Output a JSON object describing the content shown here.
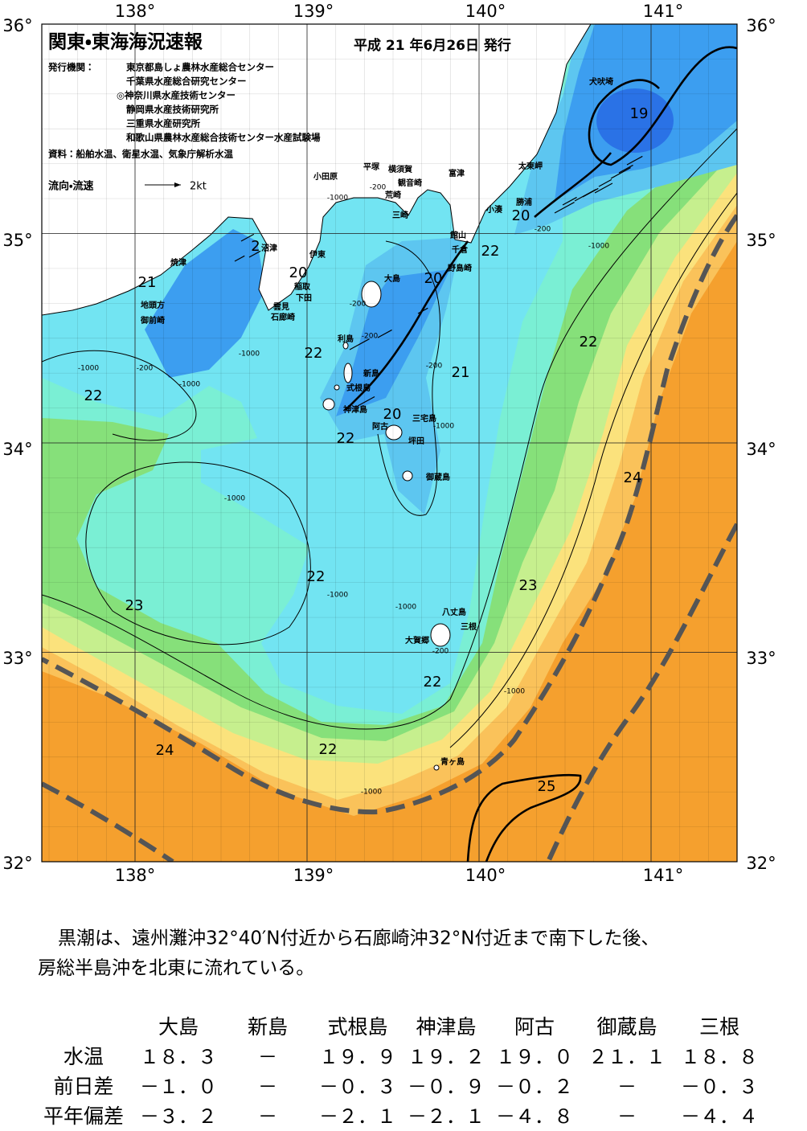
{
  "header": {
    "title": "関東・東海海況速報",
    "date": "平成 21 年6月26日 発行"
  },
  "agencies": {
    "label": "発行機関：",
    "names": [
      "東京都島しょ農林水産総合センター",
      "千葉県水産総合研究センター",
      "◎神奈川県水産技術センター",
      "静岡県水産技術研究所",
      "三重県水産研究所",
      "和歌山県農林水産総合技術センター水産試験場"
    ]
  },
  "sources": "資料：船舶水温、衛星水温、気象庁解析水温",
  "legend": {
    "label": "流向・流速",
    "speed": "2kt"
  },
  "axes": {
    "longitude": [
      "138°",
      "139°",
      "140°",
      "141°"
    ],
    "latitude": [
      "36°",
      "35°",
      "34°",
      "33°",
      "32°"
    ]
  },
  "place_names": [
    "犬吠埼",
    "太東岬",
    "勝浦",
    "小湊",
    "富津",
    "館山",
    "千倉",
    "野島崎",
    "横須賀",
    "観音崎",
    "荒崎",
    "三崎",
    "平塚",
    "小田原",
    "伊東",
    "稲取",
    "下田",
    "雲見",
    "石廊崎",
    "沼津",
    "焼津",
    "地頭方",
    "御前崎",
    "大島",
    "利島",
    "新島",
    "式根島",
    "神津島",
    "三宅島",
    "阿古",
    "坪田",
    "御蔵島",
    "八丈島",
    "三根",
    "大賀郷",
    "青ヶ島"
  ],
  "isotherm_labels": [
    "19",
    "20",
    "22",
    "20",
    "2",
    "20",
    "21",
    "22",
    "21",
    "22",
    "22",
    "20",
    "22",
    "24",
    "22",
    "23",
    "23",
    "22",
    "22",
    "24",
    "25"
  ],
  "depth_labels": [
    "-1000",
    "-200",
    "-200",
    "-1000",
    "-1000",
    "-200",
    "-1000",
    "-200",
    "-200",
    "-1000",
    "-200",
    "-1000",
    "-1000",
    "-1000",
    "-1000",
    "-200",
    "-1000",
    "-1000"
  ],
  "summary": [
    "黒潮は、遠州灘沖32°40′N付近から石廊崎沖32°N付近まで南下した後、",
    "房総半島沖を北東に流れている。"
  ],
  "table": {
    "columns": [
      "大島",
      "新島",
      "式根島",
      "神津島",
      "阿古",
      "御蔵島",
      "三根"
    ],
    "rows": [
      {
        "label": "水温",
        "cells": [
          "１８．３",
          "－",
          "１９．９",
          "１９．２",
          "１９．０",
          "２１．１",
          "１８．８"
        ]
      },
      {
        "label": "前日差",
        "cells": [
          "－１．０",
          "－",
          "－０．３",
          "－０．９",
          "－０．２",
          "－",
          "－０．３"
        ]
      },
      {
        "label": "平年偏差",
        "cells": [
          "－３．２",
          "－",
          "－２．１",
          "－２．１",
          "－４．８",
          "－",
          "－４．４"
        ]
      }
    ]
  }
}
